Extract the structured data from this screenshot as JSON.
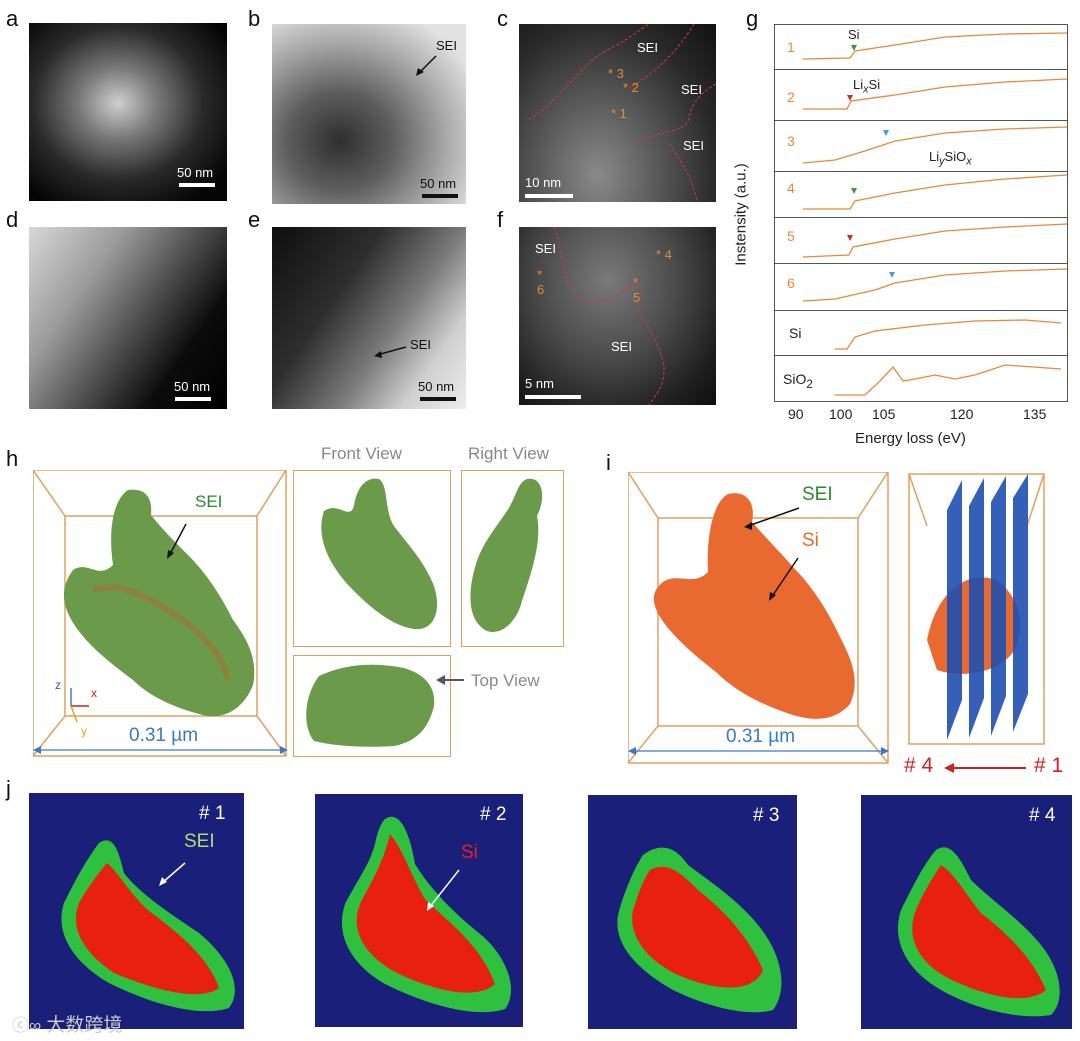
{
  "panels": {
    "a": "a",
    "b": "b",
    "c": "c",
    "d": "d",
    "e": "e",
    "f": "f",
    "g": "g",
    "h": "h",
    "i": "i",
    "j": "j"
  },
  "scalebars": {
    "a": "50 nm",
    "b": "50 nm",
    "c": "10 nm",
    "d": "50 nm",
    "e": "50 nm",
    "f": "5 nm"
  },
  "sei": "SEI",
  "si": "Si",
  "points": [
    "1",
    "2",
    "3",
    "4",
    "5",
    "6"
  ],
  "spectra": {
    "rows": [
      "1",
      "2",
      "3",
      "4",
      "5",
      "6",
      "Si",
      "SiO2"
    ],
    "annot_si": "Si",
    "annot_lixsi": "LixSi",
    "annot_liysiox": "LiySiOx",
    "ylabel": "Instensity (a.u.)",
    "xlabel": "Energy loss (eV)",
    "xticks": [
      "90",
      "100",
      "105",
      "120",
      "135"
    ]
  },
  "views": {
    "front": "Front View",
    "right": "Right View",
    "top": "Top View"
  },
  "axes": {
    "z": "z",
    "x": "x",
    "y": "y"
  },
  "dimension": "0.31 µm",
  "slices": {
    "start": "# 4",
    "end": "# 1"
  },
  "maps": [
    "# 1",
    "# 2",
    "# 3",
    "# 4"
  ],
  "watermark": "大数跨境",
  "colors": {
    "orange": "#e58a3a",
    "sei_green": "#3a9a3a",
    "si_orange": "#e86a20",
    "slice_blue": "#1f4fb0",
    "arrow_red": "#d02020"
  }
}
